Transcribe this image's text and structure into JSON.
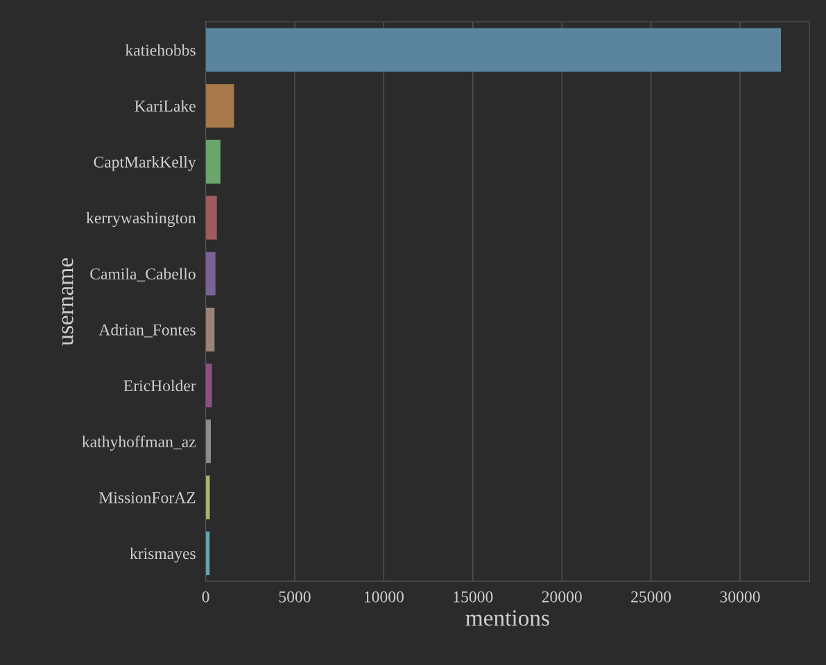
{
  "chart_data": {
    "type": "bar",
    "orientation": "horizontal",
    "xlabel": "mentions",
    "ylabel": "username",
    "categories": [
      "katiehobbs",
      "KariLake",
      "CaptMarkKelly",
      "kerrywashington",
      "Camila_Cabello",
      "Adrian_Fontes",
      "EricHolder",
      "kathyhoffman_az",
      "MissionForAZ",
      "krismayes"
    ],
    "values": [
      32300,
      1590,
      830,
      630,
      550,
      500,
      350,
      290,
      230,
      220
    ],
    "colors": [
      "#5b849f",
      "#a87a4a",
      "#6aa56a",
      "#a35a5c",
      "#7a6497",
      "#9c8279",
      "#8f4f80",
      "#8c8c8c",
      "#b3b36b",
      "#5fa8b5"
    ],
    "xlim": [
      0,
      33900
    ],
    "xticks": [
      0,
      5000,
      10000,
      15000,
      20000,
      25000,
      30000
    ],
    "grid": "x"
  }
}
